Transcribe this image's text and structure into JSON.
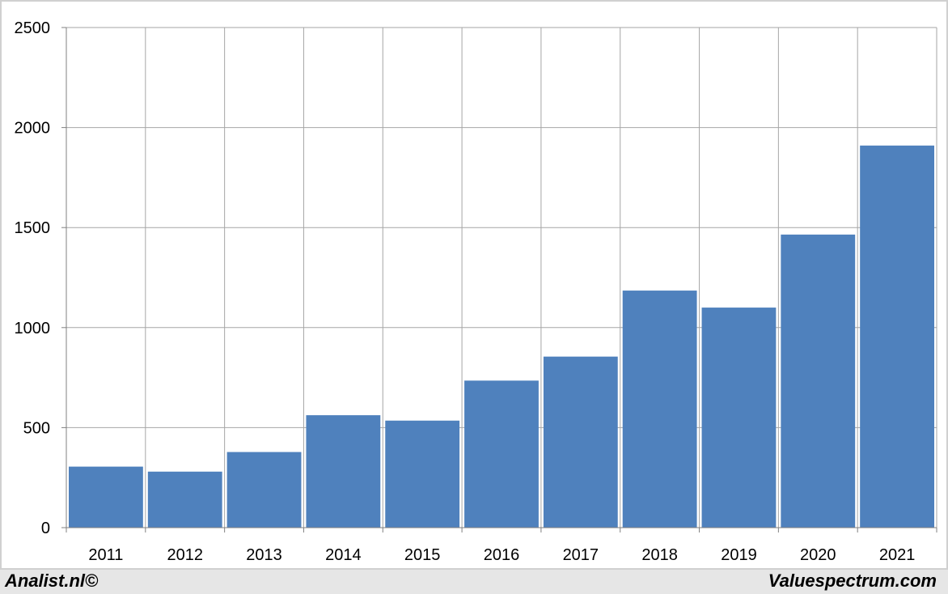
{
  "chart_data": {
    "type": "bar",
    "categories": [
      "2011",
      "2012",
      "2013",
      "2014",
      "2015",
      "2016",
      "2017",
      "2018",
      "2019",
      "2020",
      "2021"
    ],
    "values": [
      305,
      280,
      378,
      562,
      535,
      735,
      855,
      1185,
      1100,
      1465,
      1910
    ],
    "title": "",
    "xlabel": "",
    "ylabel": "",
    "ylim": [
      0,
      2500
    ],
    "yticks": [
      0,
      500,
      1000,
      1500,
      2000,
      2500
    ],
    "grid": true,
    "bar_color": "#4f81bd",
    "grid_color": "#a6a6a6"
  },
  "footer": {
    "left_text": "Analist.nl©",
    "right_text": "Valuespectrum.com"
  }
}
